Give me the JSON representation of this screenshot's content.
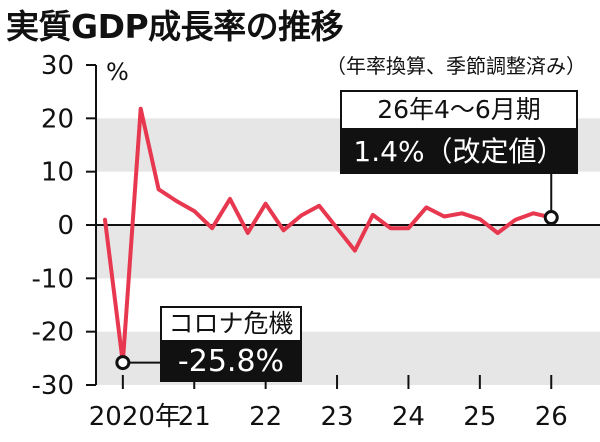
{
  "chart_data": {
    "type": "line",
    "title": "実質GDP成長率の推移",
    "subtitle": "（年率換算、季節調整済み）",
    "ylabel": "%",
    "ylim": [
      -30,
      30
    ],
    "yticks": [
      30,
      20,
      10,
      0,
      -10,
      -20,
      -30
    ],
    "grid": "alternating horizontal bands",
    "x": [
      "2020Q1",
      "2020Q2",
      "2020Q3",
      "2020Q4",
      "2021Q1",
      "2021Q2",
      "2021Q3",
      "2021Q4",
      "2022Q1",
      "2022Q2",
      "2022Q3",
      "2022Q4",
      "2023Q1",
      "2023Q2",
      "2023Q3",
      "2023Q4",
      "2024Q1",
      "2024Q2",
      "2024Q3",
      "2024Q4",
      "2025Q1",
      "2025Q2",
      "2025Q3",
      "2025Q4",
      "2026Q1",
      "2026Q2"
    ],
    "xtick_labels": [
      {
        "label": "2020年",
        "x": "2020Q2"
      },
      {
        "label": "21",
        "x": "2021Q2"
      },
      {
        "label": "22",
        "x": "2022Q2"
      },
      {
        "label": "23",
        "x": "2023Q2"
      },
      {
        "label": "24",
        "x": "2024Q2"
      },
      {
        "label": "25",
        "x": "2025Q2"
      },
      {
        "label": "26",
        "x": "2026Q2"
      }
    ],
    "series": [
      {
        "color": "#e8384f",
        "values": [
          1.0,
          -25.8,
          21.8,
          6.7,
          4.5,
          2.6,
          -0.6,
          4.9,
          -1.5,
          4.0,
          -1.0,
          1.8,
          3.6,
          -0.6,
          -4.8,
          1.9,
          -0.6,
          -0.6,
          3.3,
          1.6,
          2.2,
          1.1,
          -1.5,
          1.0,
          2.2,
          1.4
        ]
      }
    ],
    "annotations": [
      {
        "x": "2026Q2",
        "label": "26年4〜6月期",
        "value_text": "1.4%（改定値）"
      },
      {
        "x": "2020Q2",
        "label": "コロナ危機",
        "value_text": "-25.8%"
      }
    ]
  }
}
